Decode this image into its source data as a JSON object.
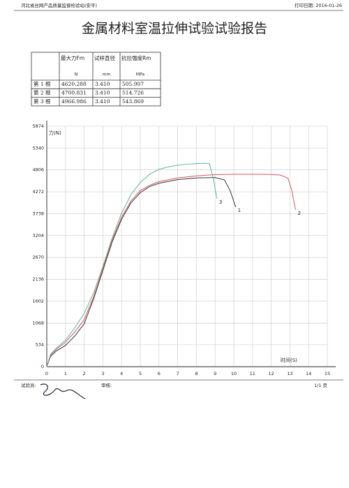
{
  "header": {
    "org": "河北省丝网产品质量监督检验站(安平)",
    "print_date": "打印日期: 2016-01-26"
  },
  "title": "金属材料室温拉伸试验试验报告",
  "table": {
    "columns": [
      {
        "name": "最大力Fm",
        "unit": "N"
      },
      {
        "name": "试样直径",
        "unit": "mm"
      },
      {
        "name": "抗拉强度Rm",
        "unit": "MPa"
      }
    ],
    "rows": [
      [
        "第 1 根",
        "4620.288",
        "3.410",
        "505.907"
      ],
      [
        "第 2 根",
        "4700.831",
        "3.410",
        "514.726"
      ],
      [
        "第 3 根",
        "4966.986",
        "3.410",
        "543.869"
      ]
    ]
  },
  "chart_data": {
    "type": "line",
    "x_label": "时间(S)",
    "y_label": "力(N)",
    "xlim": [
      0,
      15
    ],
    "xticks": [
      0,
      1,
      2,
      3,
      4,
      5,
      6,
      7,
      8,
      9,
      10,
      11,
      12,
      13,
      14,
      15
    ],
    "ylim": [
      0,
      5874
    ],
    "yticks": [
      0,
      534,
      1068,
      1602,
      2136,
      2670,
      3204,
      3738,
      4272,
      4806,
      5340,
      5874
    ],
    "grid": true,
    "series": [
      {
        "name": "1",
        "color": "#333333",
        "x": [
          0,
          0.2,
          0.5,
          1,
          1.5,
          2,
          2.5,
          3,
          3.5,
          4,
          4.5,
          5,
          5.5,
          6,
          7,
          8,
          9,
          9.5,
          9.8,
          10.1
        ],
        "values": [
          0,
          250,
          380,
          520,
          750,
          1050,
          1650,
          2350,
          3050,
          3600,
          4000,
          4250,
          4400,
          4480,
          4570,
          4610,
          4620,
          4560,
          4300,
          3900
        ]
      },
      {
        "name": "2",
        "color": "#d0575f",
        "x": [
          0,
          0.2,
          0.5,
          1,
          1.5,
          2,
          2.5,
          3,
          3.5,
          4,
          4.5,
          5,
          5.5,
          6,
          7,
          8,
          9,
          10,
          11,
          12,
          12.5,
          12.9,
          13.1,
          13.3
        ],
        "values": [
          0,
          280,
          420,
          600,
          850,
          1150,
          1700,
          2400,
          3100,
          3650,
          4050,
          4300,
          4430,
          4520,
          4610,
          4660,
          4690,
          4700,
          4700,
          4695,
          4680,
          4600,
          4300,
          3830
        ]
      },
      {
        "name": "3",
        "color": "#5fb39a",
        "x": [
          0,
          0.2,
          0.5,
          1,
          1.5,
          2,
          2.5,
          3,
          3.5,
          4,
          4.5,
          5,
          5.5,
          6,
          6.5,
          7,
          7.5,
          8,
          8.5,
          8.7,
          8.9,
          9.1
        ],
        "values": [
          0,
          300,
          450,
          650,
          950,
          1300,
          1800,
          2450,
          3150,
          3750,
          4200,
          4500,
          4700,
          4820,
          4880,
          4920,
          4945,
          4960,
          4967,
          4955,
          4600,
          4100
        ]
      }
    ]
  },
  "footer": {
    "tester": "试验员:",
    "reviewer": "审核:",
    "page": "1/1 页"
  }
}
